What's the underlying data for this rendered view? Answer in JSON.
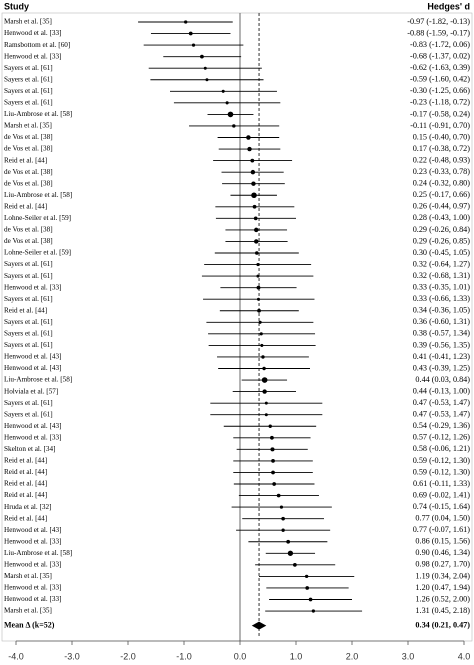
{
  "chart_data": {
    "type": "forest",
    "study_header": "Study",
    "effect_header": "Hedges' d",
    "xlim": [
      -4,
      4
    ],
    "xticks": [
      {
        "value": -4,
        "label": "-4.0"
      },
      {
        "value": -3,
        "label": "-3.0"
      },
      {
        "value": -2,
        "label": "-2.0"
      },
      {
        "value": -1,
        "label": "-1.0"
      },
      {
        "value": 0,
        "label": "0.0"
      },
      {
        "value": 1,
        "label": "1.0"
      },
      {
        "value": 2,
        "label": "2.0"
      },
      {
        "value": 3,
        "label": "3.0"
      },
      {
        "value": 4,
        "label": "4.0"
      }
    ],
    "rows": [
      {
        "study": "Marsh et al. [35]",
        "label": "-0.97 (-1.82, -0.13)",
        "d": -0.97,
        "lo": -1.82,
        "hi": -0.13
      },
      {
        "study": "Henwood et al. [33]",
        "label": "-0.88 (-1.59, -0.17)",
        "d": -0.88,
        "lo": -1.59,
        "hi": -0.17
      },
      {
        "study": "Ramsbottom et al. [60]",
        "label": "-0.83 (-1.72, 0.06)",
        "d": -0.83,
        "lo": -1.72,
        "hi": 0.06
      },
      {
        "study": "Henwood et al. [33]",
        "label": "-0.68 (-1.37, 0.02)",
        "d": -0.68,
        "lo": -1.37,
        "hi": 0.02
      },
      {
        "study": "Sayers et al. [61]",
        "label": "-0.62 (-1.63, 0.39)",
        "d": -0.62,
        "lo": -1.63,
        "hi": 0.39
      },
      {
        "study": "Sayers et al. [61]",
        "label": "-0.59 (-1.60, 0.42)",
        "d": -0.59,
        "lo": -1.6,
        "hi": 0.42
      },
      {
        "study": "Sayers et al. [61]",
        "label": "-0.30 (-1.25, 0.66)",
        "d": -0.3,
        "lo": -1.25,
        "hi": 0.66
      },
      {
        "study": "Sayers et al. [61]",
        "label": "-0.23 (-1.18, 0.72)",
        "d": -0.23,
        "lo": -1.18,
        "hi": 0.72
      },
      {
        "study": "Liu-Ambrose et al. [58]",
        "label": "-0.17 (-0.58, 0.24)",
        "d": -0.17,
        "lo": -0.58,
        "hi": 0.24
      },
      {
        "study": "Marsh et al. [35]",
        "label": "-0.11 (-0.91, 0.70)",
        "d": -0.11,
        "lo": -0.91,
        "hi": 0.7
      },
      {
        "study": "de Vos et al. [38]",
        "label": "0.15 (-0.40, 0.70)",
        "d": 0.15,
        "lo": -0.4,
        "hi": 0.7
      },
      {
        "study": "de Vos et al. [38]",
        "label": "0.17 (-0.38, 0.72)",
        "d": 0.17,
        "lo": -0.38,
        "hi": 0.72
      },
      {
        "study": "Reid et al. [44]",
        "label": "0.22 (-0.48, 0.93)",
        "d": 0.22,
        "lo": -0.48,
        "hi": 0.93
      },
      {
        "study": "de Vos et al. [38]",
        "label": "0.23 (-0.33, 0.78)",
        "d": 0.23,
        "lo": -0.33,
        "hi": 0.78
      },
      {
        "study": "de Vos et al. [38]",
        "label": "0.24 (-0.32, 0.80)",
        "d": 0.24,
        "lo": -0.32,
        "hi": 0.8
      },
      {
        "study": "Liu-Ambrose et al. [58]",
        "label": "0.25 (-0.17, 0.66)",
        "d": 0.25,
        "lo": -0.17,
        "hi": 0.66
      },
      {
        "study": "Reid et al. [44]",
        "label": "0.26 (-0.44, 0.97)",
        "d": 0.26,
        "lo": -0.44,
        "hi": 0.97
      },
      {
        "study": "Lohne-Seiler et al. [59]",
        "label": "0.28 (-0.43, 1.00)",
        "d": 0.28,
        "lo": -0.43,
        "hi": 1.0
      },
      {
        "study": "de Vos et al. [38]",
        "label": "0.29 (-0.26, 0.84)",
        "d": 0.29,
        "lo": -0.26,
        "hi": 0.84
      },
      {
        "study": "de Vos et al. [38]",
        "label": "0.29 (-0.26, 0.85)",
        "d": 0.29,
        "lo": -0.26,
        "hi": 0.85
      },
      {
        "study": "Lohne-Seiler et al. [59]",
        "label": "0.30 (-0.45, 1.05)",
        "d": 0.3,
        "lo": -0.45,
        "hi": 1.05
      },
      {
        "study": "Sayers et al. [61]",
        "label": "0.32 (-0.64, 1.27)",
        "d": 0.32,
        "lo": -0.64,
        "hi": 1.27
      },
      {
        "study": "Sayers et al. [61]",
        "label": "0.32 (-0.68, 1.31)",
        "d": 0.32,
        "lo": -0.68,
        "hi": 1.31
      },
      {
        "study": "Henwood et al. [33]",
        "label": "0.33 (-0.35, 1.01)",
        "d": 0.33,
        "lo": -0.35,
        "hi": 1.01
      },
      {
        "study": "Sayers et al. [61]",
        "label": "0.33 (-0.66, 1.33)",
        "d": 0.33,
        "lo": -0.66,
        "hi": 1.33
      },
      {
        "study": "Reid et al. [44]",
        "label": "0.34 (-0.36, 1.05)",
        "d": 0.34,
        "lo": -0.36,
        "hi": 1.05
      },
      {
        "study": "Sayers et al. [61]",
        "label": "0.36 (-0.60, 1.31)",
        "d": 0.36,
        "lo": -0.6,
        "hi": 1.31
      },
      {
        "study": "Sayers et al. [61]",
        "label": "0.38 (-0.57, 1.34)",
        "d": 0.38,
        "lo": -0.57,
        "hi": 1.34
      },
      {
        "study": "Sayers et al. [61]",
        "label": "0.39 (-0.56, 1.35)",
        "d": 0.39,
        "lo": -0.56,
        "hi": 1.35
      },
      {
        "study": "Henwood et al. [43]",
        "label": "0.41 (-0.41, 1.23)",
        "d": 0.41,
        "lo": -0.41,
        "hi": 1.23
      },
      {
        "study": "Henwood et al. [43]",
        "label": "0.43 (-0.39, 1.25)",
        "d": 0.43,
        "lo": -0.39,
        "hi": 1.25
      },
      {
        "study": "Liu-Ambrose et al. [58]",
        "label": "0.44 (0.03, 0.84)",
        "d": 0.44,
        "lo": 0.03,
        "hi": 0.84
      },
      {
        "study": "Holviala et al. [57]",
        "label": "0.44 (-0.13, 1.00)",
        "d": 0.44,
        "lo": -0.13,
        "hi": 1.0
      },
      {
        "study": "Sayers et al. [61]",
        "label": "0.47 (-0.53, 1.47)",
        "d": 0.47,
        "lo": -0.53,
        "hi": 1.47
      },
      {
        "study": "Sayers et al. [61]",
        "label": "0.47 (-0.53, 1.47)",
        "d": 0.47,
        "lo": -0.53,
        "hi": 1.47
      },
      {
        "study": "Henwood et al. [43]",
        "label": "0.54 (-0.29, 1.36)",
        "d": 0.54,
        "lo": -0.29,
        "hi": 1.36
      },
      {
        "study": "Henwood et al. [33]",
        "label": "0.57 (-0.12, 1.26)",
        "d": 0.57,
        "lo": -0.12,
        "hi": 1.26
      },
      {
        "study": "Skelton et al. [34]",
        "label": "0.58 (-0.06, 1.21)",
        "d": 0.58,
        "lo": -0.06,
        "hi": 1.21
      },
      {
        "study": "Reid et al. [44]",
        "label": "0.59 (-0.12, 1.30)",
        "d": 0.59,
        "lo": -0.12,
        "hi": 1.3
      },
      {
        "study": "Reid et al. [44]",
        "label": "0.59 (-0.12, 1.30)",
        "d": 0.59,
        "lo": -0.12,
        "hi": 1.3
      },
      {
        "study": "Reid et al. [44]",
        "label": "0.61 (-0.11, 1.33)",
        "d": 0.61,
        "lo": -0.11,
        "hi": 1.33
      },
      {
        "study": "Reid et al. [44]",
        "label": "0.69 (-0.02, 1.41)",
        "d": 0.69,
        "lo": -0.02,
        "hi": 1.41
      },
      {
        "study": "Hruda et al. [32]",
        "label": "0.74 (-0.15, 1.64)",
        "d": 0.74,
        "lo": -0.15,
        "hi": 1.64
      },
      {
        "study": "Reid et al. [44]",
        "label": "0.77 (0.04, 1.50)",
        "d": 0.77,
        "lo": 0.04,
        "hi": 1.5
      },
      {
        "study": "Henwood et al. [43]",
        "label": "0.77 (-0.07, 1.61)",
        "d": 0.77,
        "lo": -0.07,
        "hi": 1.61
      },
      {
        "study": "Henwood et al. [33]",
        "label": "0.86 (0.15, 1.56)",
        "d": 0.86,
        "lo": 0.15,
        "hi": 1.56
      },
      {
        "study": "Liu-Ambrose et al. [58]",
        "label": "0.90 (0.46, 1.34)",
        "d": 0.9,
        "lo": 0.46,
        "hi": 1.34
      },
      {
        "study": "Henwood et al. [33]",
        "label": "0.98 (0.27, 1.70)",
        "d": 0.98,
        "lo": 0.27,
        "hi": 1.7
      },
      {
        "study": "Marsh et al. [35]",
        "label": "1.19 (0.34, 2.04)",
        "d": 1.19,
        "lo": 0.34,
        "hi": 2.04
      },
      {
        "study": "Henwood et al. [33]",
        "label": "1.20 (0.47, 1.94)",
        "d": 1.2,
        "lo": 0.47,
        "hi": 1.94
      },
      {
        "study": "Henwood et al. [33]",
        "label": "1.26 (0.52, 2.00)",
        "d": 1.26,
        "lo": 0.52,
        "hi": 2.0
      },
      {
        "study": "Marsh et al. [35]",
        "label": "1.31 (0.45, 2.18)",
        "d": 1.31,
        "lo": 0.45,
        "hi": 2.18
      }
    ],
    "summary": {
      "study": "Mean Δ (k=52)",
      "label": "0.34 (0.21, 0.47)",
      "d": 0.34,
      "lo": 0.21,
      "hi": 0.47
    }
  }
}
